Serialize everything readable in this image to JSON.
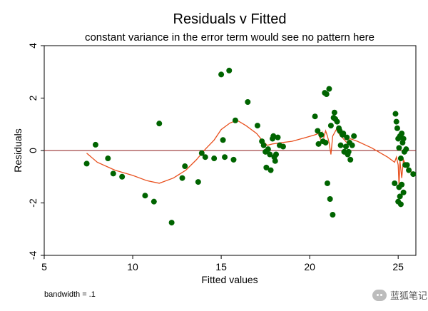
{
  "chart_data": {
    "type": "scatter",
    "title": "Residuals v Fitted",
    "subtitle": "constant variance in the error term would see no pattern here",
    "xlabel": "Fitted values",
    "ylabel": "Residuals",
    "xlim": [
      5,
      26
    ],
    "ylim": [
      -4,
      4
    ],
    "xticks": [
      5,
      10,
      15,
      20,
      25
    ],
    "yticks": [
      -4,
      -2,
      0,
      2,
      4
    ],
    "grid": false,
    "reference_line_y": 0,
    "note": "bandwidth = .1",
    "colors": {
      "points": "#006400",
      "lowess": "#e8501e",
      "reference": "#8b1a1a"
    },
    "series": [
      {
        "type": "scatter",
        "points": [
          [
            7.4,
            -0.5
          ],
          [
            7.9,
            0.22
          ],
          [
            8.6,
            -0.3
          ],
          [
            8.9,
            -0.88
          ],
          [
            9.4,
            -1.0
          ],
          [
            10.7,
            -1.72
          ],
          [
            11.2,
            -1.95
          ],
          [
            11.5,
            1.03
          ],
          [
            12.2,
            -2.75
          ],
          [
            12.8,
            -1.05
          ],
          [
            12.95,
            -0.6
          ],
          [
            13.7,
            -1.2
          ],
          [
            13.9,
            -0.1
          ],
          [
            14.1,
            -0.25
          ],
          [
            14.6,
            -0.3
          ],
          [
            15.0,
            2.9
          ],
          [
            15.1,
            0.4
          ],
          [
            15.2,
            -0.25
          ],
          [
            15.45,
            3.05
          ],
          [
            15.7,
            -0.35
          ],
          [
            15.8,
            1.15
          ],
          [
            16.5,
            1.85
          ],
          [
            17.05,
            0.95
          ],
          [
            17.3,
            0.35
          ],
          [
            17.4,
            0.2
          ],
          [
            17.5,
            -0.05
          ],
          [
            17.55,
            -0.65
          ],
          [
            17.65,
            0.05
          ],
          [
            17.75,
            -0.15
          ],
          [
            17.8,
            -0.75
          ],
          [
            17.9,
            0.45
          ],
          [
            17.95,
            0.55
          ],
          [
            18.0,
            -0.25
          ],
          [
            18.05,
            -0.4
          ],
          [
            18.1,
            -0.15
          ],
          [
            18.2,
            0.5
          ],
          [
            18.3,
            0.2
          ],
          [
            18.5,
            0.15
          ],
          [
            20.3,
            1.3
          ],
          [
            20.45,
            0.75
          ],
          [
            20.5,
            0.25
          ],
          [
            20.65,
            0.6
          ],
          [
            20.75,
            0.35
          ],
          [
            20.85,
            2.2
          ],
          [
            20.9,
            0.3
          ],
          [
            20.95,
            2.15
          ],
          [
            21.0,
            -1.25
          ],
          [
            21.1,
            2.35
          ],
          [
            21.15,
            -1.85
          ],
          [
            21.2,
            0.95
          ],
          [
            21.3,
            -2.45
          ],
          [
            21.35,
            1.25
          ],
          [
            21.4,
            1.45
          ],
          [
            21.45,
            1.2
          ],
          [
            21.55,
            1.1
          ],
          [
            21.65,
            0.85
          ],
          [
            21.7,
            0.75
          ],
          [
            21.75,
            0.2
          ],
          [
            21.85,
            0.6
          ],
          [
            21.9,
            0.65
          ],
          [
            21.95,
            -0.05
          ],
          [
            22.05,
            0.15
          ],
          [
            22.1,
            0.5
          ],
          [
            22.15,
            -0.15
          ],
          [
            22.2,
            -0.05
          ],
          [
            22.25,
            0.3
          ],
          [
            22.3,
            -0.35
          ],
          [
            22.4,
            0.2
          ],
          [
            22.5,
            0.55
          ],
          [
            24.8,
            -1.25
          ],
          [
            24.85,
            1.4
          ],
          [
            24.9,
            1.1
          ],
          [
            24.95,
            0.85
          ],
          [
            25.0,
            -1.95
          ],
          [
            25.0,
            0.45
          ],
          [
            25.05,
            -1.4
          ],
          [
            25.05,
            0.1
          ],
          [
            25.1,
            -1.75
          ],
          [
            25.1,
            0.55
          ],
          [
            25.15,
            -2.05
          ],
          [
            25.15,
            -0.3
          ],
          [
            25.2,
            0.65
          ],
          [
            25.2,
            -1.3
          ],
          [
            25.25,
            0.3
          ],
          [
            25.3,
            -1.6
          ],
          [
            25.3,
            0.45
          ],
          [
            25.35,
            -0.05
          ],
          [
            25.4,
            -0.55
          ],
          [
            25.45,
            0.05
          ],
          [
            25.5,
            -0.55
          ],
          [
            25.6,
            -0.75
          ],
          [
            25.85,
            -0.9
          ]
        ]
      },
      {
        "type": "line",
        "points": [
          [
            7.4,
            -0.1
          ],
          [
            8.0,
            -0.45
          ],
          [
            9.0,
            -0.75
          ],
          [
            10.0,
            -0.95
          ],
          [
            10.8,
            -1.15
          ],
          [
            11.5,
            -1.25
          ],
          [
            12.3,
            -1.05
          ],
          [
            13.0,
            -0.75
          ],
          [
            13.6,
            -0.35
          ],
          [
            14.1,
            0.05
          ],
          [
            14.6,
            0.4
          ],
          [
            15.0,
            0.8
          ],
          [
            15.5,
            1.05
          ],
          [
            15.9,
            1.15
          ],
          [
            16.4,
            0.95
          ],
          [
            17.0,
            0.65
          ],
          [
            17.3,
            0.4
          ],
          [
            17.6,
            0.2
          ],
          [
            17.9,
            0.25
          ],
          [
            18.4,
            0.3
          ],
          [
            19.0,
            0.35
          ],
          [
            19.8,
            0.5
          ],
          [
            20.3,
            0.6
          ],
          [
            20.5,
            0.65
          ],
          [
            20.6,
            0.45
          ],
          [
            20.7,
            0.7
          ],
          [
            20.8,
            0.5
          ],
          [
            20.9,
            0.75
          ],
          [
            21.0,
            0.55
          ],
          [
            21.1,
            0.3
          ],
          [
            21.2,
            -0.15
          ],
          [
            21.3,
            0.55
          ],
          [
            21.5,
            0.8
          ],
          [
            21.7,
            0.6
          ],
          [
            21.9,
            0.45
          ],
          [
            22.1,
            0.3
          ],
          [
            22.3,
            0.45
          ],
          [
            22.7,
            0.35
          ],
          [
            23.5,
            0.1
          ],
          [
            24.4,
            -0.25
          ],
          [
            24.8,
            -0.45
          ],
          [
            24.9,
            -0.25
          ],
          [
            25.0,
            -0.55
          ],
          [
            25.05,
            -1.35
          ],
          [
            25.1,
            -0.4
          ],
          [
            25.2,
            -1.05
          ],
          [
            25.3,
            -0.35
          ],
          [
            25.5,
            -0.65
          ],
          [
            25.85,
            -0.9
          ]
        ]
      }
    ]
  },
  "watermark": "蓝狐笔记"
}
